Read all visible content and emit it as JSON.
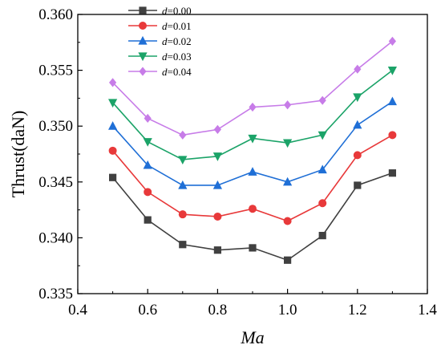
{
  "chart_data": {
    "type": "line",
    "xlabel": "Ma",
    "ylabel": "Thrust(daN)",
    "xlim": [
      0.4,
      1.4
    ],
    "ylim": [
      0.335,
      0.36
    ],
    "x_ticks": [
      "0.4",
      "0.6",
      "0.8",
      "1.0",
      "1.2",
      "1.4"
    ],
    "y_ticks": [
      "0.335",
      "0.340",
      "0.345",
      "0.350",
      "0.355",
      "0.360"
    ],
    "x": [
      0.5,
      0.6,
      0.7,
      0.8,
      0.9,
      1.0,
      1.1,
      1.2,
      1.3
    ],
    "legend_placement": "top-left",
    "grid": false,
    "series": [
      {
        "name_prefix": "d",
        "name_value": "=0.00",
        "color": "#404040",
        "marker": "square",
        "values": [
          0.3454,
          0.3416,
          0.3394,
          0.3389,
          0.3391,
          0.338,
          0.3402,
          0.3447,
          0.3458
        ]
      },
      {
        "name_prefix": "d",
        "name_value": "=0.01",
        "color": "#e8393a",
        "marker": "circle",
        "values": [
          0.3478,
          0.3441,
          0.3421,
          0.3419,
          0.3426,
          0.3415,
          0.3431,
          0.3474,
          0.3492
        ]
      },
      {
        "name_prefix": "d",
        "name_value": "=0.02",
        "color": "#1f6fd6",
        "marker": "triangle-up",
        "values": [
          0.35,
          0.3465,
          0.3447,
          0.3447,
          0.3459,
          0.345,
          0.3461,
          0.3501,
          0.3522
        ]
      },
      {
        "name_prefix": "d",
        "name_value": "=0.03",
        "color": "#1ba368",
        "marker": "triangle-down",
        "values": [
          0.3521,
          0.3486,
          0.347,
          0.3473,
          0.3489,
          0.3485,
          0.3492,
          0.3526,
          0.355
        ]
      },
      {
        "name_prefix": "d",
        "name_value": "=0.04",
        "color": "#c77ce8",
        "marker": "diamond",
        "values": [
          0.3539,
          0.3507,
          0.3492,
          0.3497,
          0.3517,
          0.3519,
          0.3523,
          0.3551,
          0.3576
        ]
      }
    ]
  }
}
